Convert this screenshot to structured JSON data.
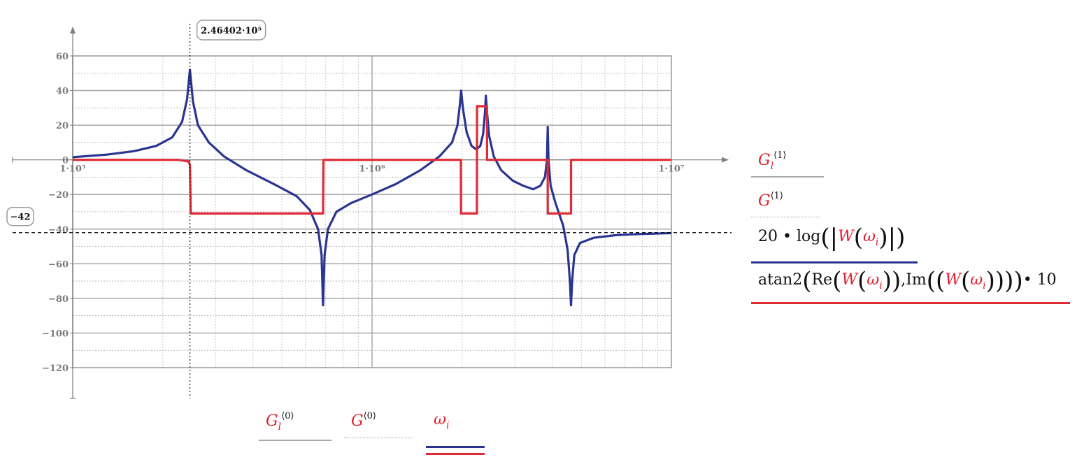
{
  "chart_data": {
    "type": "line",
    "x_scale": "log",
    "xlim": [
      100000,
      10000000
    ],
    "ylim": [
      -120,
      60
    ],
    "x_ticks": [
      "1·10⁵",
      "1·10⁶",
      "1·10⁷"
    ],
    "y_ticks": [
      "60",
      "40",
      "20",
      "0",
      "−20",
      "−40",
      "−60",
      "−80",
      "−100",
      "−120"
    ],
    "y_tick_values": [
      60,
      40,
      20,
      0,
      -20,
      -40,
      -60,
      -80,
      -100,
      -120
    ],
    "x_marker": 246402,
    "x_marker_label": "2.46402·10⁵",
    "y_marker": -42,
    "y_marker_label": "−42",
    "grid": true,
    "series": [
      {
        "name": "20·log(|W(ωi)|)",
        "color": "#2b3591",
        "points": [
          [
            100000,
            1.5
          ],
          [
            130000,
            3
          ],
          [
            160000,
            5
          ],
          [
            190000,
            8
          ],
          [
            215000,
            13
          ],
          [
            232000,
            22
          ],
          [
            241000,
            35
          ],
          [
            246402,
            52
          ],
          [
            252000,
            34
          ],
          [
            262000,
            20
          ],
          [
            285000,
            10
          ],
          [
            320000,
            2
          ],
          [
            380000,
            -6
          ],
          [
            470000,
            -14
          ],
          [
            560000,
            -21
          ],
          [
            620000,
            -29
          ],
          [
            660000,
            -40
          ],
          [
            678000,
            -55
          ],
          [
            686000,
            -84
          ],
          [
            694000,
            -55
          ],
          [
            712000,
            -40
          ],
          [
            760000,
            -30
          ],
          [
            850000,
            -25
          ],
          [
            1000000,
            -20
          ],
          [
            1200000,
            -14
          ],
          [
            1450000,
            -6
          ],
          [
            1680000,
            2
          ],
          [
            1850000,
            10
          ],
          [
            1930000,
            20
          ],
          [
            1965000,
            32
          ],
          [
            1985000,
            40
          ],
          [
            2010000,
            30
          ],
          [
            2070000,
            16
          ],
          [
            2150000,
            8
          ],
          [
            2230000,
            6
          ],
          [
            2300000,
            8
          ],
          [
            2350000,
            15
          ],
          [
            2385000,
            28
          ],
          [
            2400000,
            37
          ],
          [
            2420000,
            28
          ],
          [
            2460000,
            14
          ],
          [
            2550000,
            2
          ],
          [
            2700000,
            -6
          ],
          [
            2950000,
            -12
          ],
          [
            3200000,
            -15
          ],
          [
            3450000,
            -17
          ],
          [
            3650000,
            -15
          ],
          [
            3780000,
            -10
          ],
          [
            3840000,
            0
          ],
          [
            3862000,
            19
          ],
          [
            3885000,
            0
          ],
          [
            3950000,
            -15
          ],
          [
            4100000,
            -25
          ],
          [
            4350000,
            -38
          ],
          [
            4500000,
            -52
          ],
          [
            4580000,
            -70
          ],
          [
            4620000,
            -84
          ],
          [
            4660000,
            -70
          ],
          [
            4740000,
            -55
          ],
          [
            4950000,
            -48
          ],
          [
            5500000,
            -45
          ],
          [
            6500000,
            -43.5
          ],
          [
            8000000,
            -42.8
          ],
          [
            10000000,
            -42.3
          ]
        ]
      },
      {
        "name": "atan2(Re(W(ωi)), Im((W(ωi))))·10",
        "color": "#e02a35",
        "points": [
          [
            100000,
            0
          ],
          [
            225000,
            0
          ],
          [
            244000,
            -1
          ],
          [
            246400,
            -3
          ],
          [
            248000,
            -31
          ],
          [
            686000,
            -31
          ],
          [
            688000,
            0
          ],
          [
            1980000,
            0
          ],
          [
            1982000,
            -31
          ],
          [
            2240000,
            -31
          ],
          [
            2242000,
            31
          ],
          [
            2420000,
            31
          ],
          [
            2422000,
            0
          ],
          [
            3860000,
            0
          ],
          [
            3862000,
            -31
          ],
          [
            4620000,
            -31
          ],
          [
            4622000,
            0
          ],
          [
            10000000,
            0
          ]
        ]
      }
    ]
  },
  "legend_right": [
    {
      "main": "G",
      "sub": "l",
      "sup": "⟨1⟩",
      "color": "#a9a9a9",
      "style": "solid"
    },
    {
      "main": "G",
      "sub": "",
      "sup": "⟨1⟩",
      "color": "#a9a9a9",
      "style": "dotted"
    },
    {
      "prefix": "20 • log",
      "color": "#2b3591",
      "style": "solid"
    },
    {
      "prefix": "atan2",
      "color": "#e02a35",
      "style": "solid"
    }
  ],
  "legend_text": {
    "re": "Re",
    "im": "Im",
    "w": "W",
    "omega": "ω",
    "i": "i",
    "times10": "• 10",
    "comma": ","
  },
  "legend_bottom": [
    {
      "main": "G",
      "sub": "l",
      "sup": "⟨0⟩"
    },
    {
      "main": "G",
      "sub": "",
      "sup": "⟨0⟩"
    },
    {
      "main": "ω",
      "sub": "i",
      "sup": ""
    }
  ]
}
